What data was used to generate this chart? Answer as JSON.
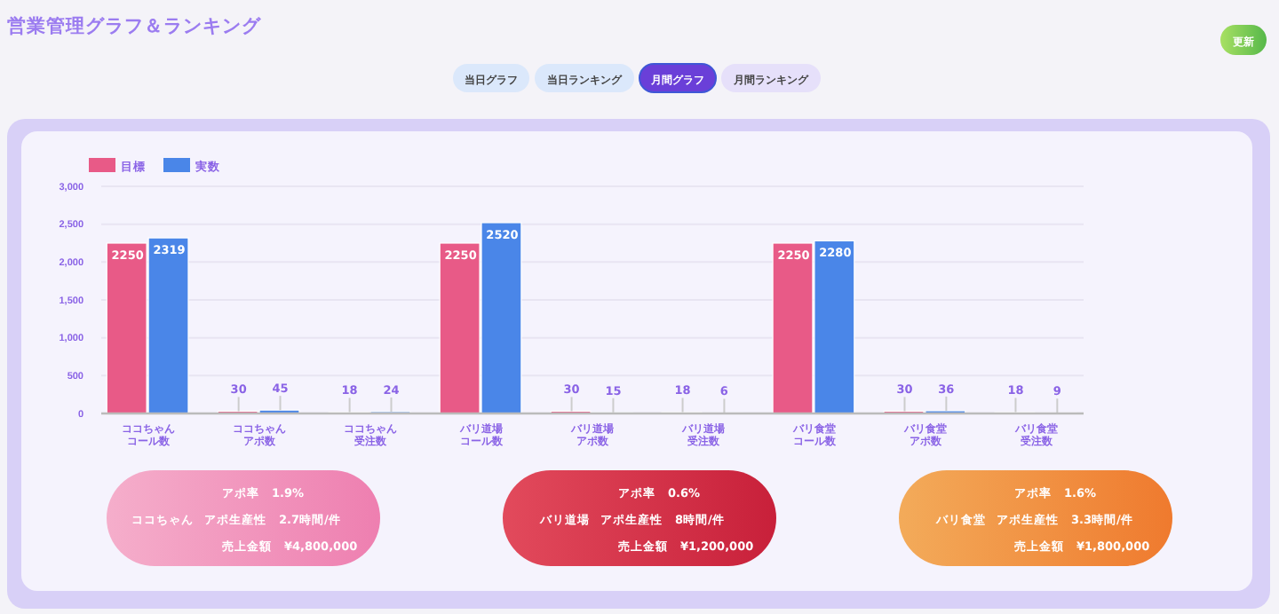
{
  "chart_data": {
    "type": "bar",
    "title": "営業管理グラフ＆ランキング",
    "categories": [
      "ココちゃんコール数",
      "ココちゃんアポ数",
      "ココちゃん受注数",
      "バリ道場コール数",
      "バリ道場アポ数",
      "バリ道場受注数",
      "バリ食堂コール数",
      "バリ食堂アポ数",
      "バリ食堂受注数"
    ],
    "series": [
      {
        "name": "目標",
        "color": "#e85a87",
        "values": [
          2250,
          30,
          18,
          2250,
          30,
          18,
          2250,
          30,
          18
        ]
      },
      {
        "name": "実数",
        "color": "#4a86e8",
        "values": [
          2319,
          45,
          24,
          2520,
          15,
          6,
          2280,
          36,
          9
        ]
      }
    ],
    "ylim": [
      0,
      3000
    ],
    "yticks": [
      0,
      {
        "value": 500,
        "label": "500"
      },
      {
        "value": 1000,
        "label": "1,000"
      },
      {
        "value": 1500,
        "label": "1,500"
      },
      {
        "value": 2000,
        "label": "2,000"
      },
      {
        "value": 2500,
        "label": "2,500"
      },
      {
        "value": 3000,
        "label": "3,000"
      }
    ],
    "grid": "y",
    "legend": "top left",
    "data_labels": true,
    "annotations": [
      "更新",
      "当日グラフ",
      "当日ランキング",
      "月間グラフ",
      "月間ランキング",
      "ココちゃん",
      "アポ率　1.9%",
      "アポ生産性　2.7時間/件",
      "売上金額　¥4,800,000",
      "バリ道場",
      "アポ率　0.6%",
      "アポ生産性　8時間/件",
      "売上金額　¥1,200,000",
      "バリ食堂",
      "アポ率　1.6%",
      "アポ生産性　3.3時間/件",
      "売上金額　¥1,800,000"
    ]
  }
}
